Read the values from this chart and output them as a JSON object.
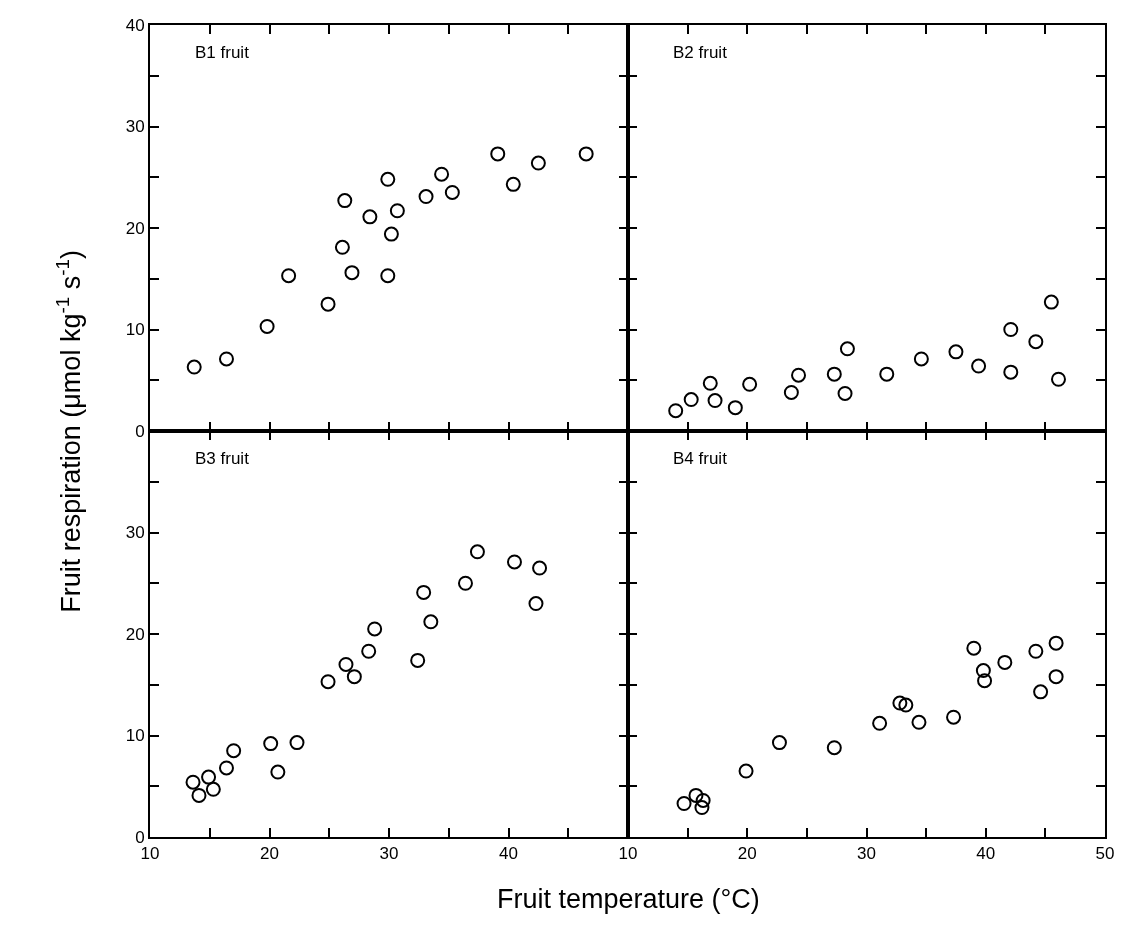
{
  "chart_data": [
    {
      "type": "scatter",
      "title": "B1 fruit",
      "ylabel": "Fruit respiration (μmol kg$^{-1}$ s$^{-1}$)",
      "marker": "circle",
      "grid": false,
      "tick_labels": "y",
      "xlim": [
        10,
        50
      ],
      "xticks": [
        10,
        {
          "value": 15,
          "label": null
        },
        20,
        {
          "value": 25,
          "label": null
        },
        30,
        {
          "value": 35,
          "label": null
        },
        40,
        {
          "value": 45,
          "label": null
        },
        50
      ],
      "ylim": [
        0,
        40
      ],
      "yticks": [
        0,
        {
          "value": 5,
          "label": null
        },
        10,
        {
          "value": 15,
          "label": null
        },
        20,
        {
          "value": 25,
          "label": null
        },
        30,
        {
          "value": 35,
          "label": null
        },
        40
      ],
      "x": [
        13.7,
        16.4,
        19.8,
        21.6,
        24.9,
        26.1,
        26.3,
        26.9,
        28.4,
        29.9,
        29.9,
        30.2,
        30.7,
        33.1,
        34.4,
        35.3,
        39.1,
        40.4,
        42.5,
        46.5
      ],
      "series": [
        {
          "color": "#000000",
          "values": [
            6.3,
            7.1,
            10.3,
            15.3,
            12.5,
            18.1,
            22.7,
            15.6,
            21.1,
            15.3,
            24.8,
            19.4,
            21.7,
            23.1,
            25.3,
            23.5,
            27.3,
            24.3,
            26.4,
            27.3
          ]
        }
      ]
    },
    {
      "type": "scatter",
      "title": "B2 fruit",
      "marker": "circle",
      "grid": false,
      "tick_labels": false,
      "xlim": [
        10,
        50
      ],
      "xticks": [
        10,
        {
          "value": 15,
          "label": null
        },
        20,
        {
          "value": 25,
          "label": null
        },
        30,
        {
          "value": 35,
          "label": null
        },
        40,
        {
          "value": 45,
          "label": null
        },
        50
      ],
      "ylim": [
        0,
        40
      ],
      "yticks": [
        0,
        {
          "value": 5,
          "label": null
        },
        10,
        {
          "value": 15,
          "label": null
        },
        20,
        {
          "value": 25,
          "label": null
        },
        30,
        {
          "value": 35,
          "label": null
        },
        40
      ],
      "x": [
        14.0,
        15.3,
        16.9,
        17.3,
        19.0,
        20.2,
        23.7,
        24.3,
        27.3,
        28.2,
        28.4,
        31.7,
        34.6,
        37.5,
        39.4,
        42.1,
        42.1,
        44.2,
        45.5,
        46.1
      ],
      "series": [
        {
          "color": "#000000",
          "values": [
            2.0,
            3.1,
            4.7,
            3.0,
            2.3,
            4.6,
            3.8,
            5.5,
            5.6,
            3.7,
            8.1,
            5.6,
            7.1,
            7.8,
            6.4,
            10.0,
            5.8,
            8.8,
            12.7,
            5.1
          ]
        }
      ]
    },
    {
      "type": "scatter",
      "title": "B3 fruit",
      "xlabel": "Fruit temperature (°C)",
      "marker": "circle",
      "grid": false,
      "xlim": [
        10,
        50
      ],
      "xticks": [
        10,
        {
          "value": 15,
          "label": null
        },
        20,
        {
          "value": 25,
          "label": null
        },
        30,
        {
          "value": 35,
          "label": null
        },
        40,
        {
          "value": 45,
          "label": null
        },
        {
          "value": 50,
          "label": null
        }
      ],
      "ylim": [
        0,
        40
      ],
      "yticks": [
        0,
        {
          "value": 5,
          "label": null
        },
        10,
        {
          "value": 15,
          "label": null
        },
        20,
        {
          "value": 25,
          "label": null
        },
        30,
        {
          "value": 35,
          "label": null
        },
        {
          "value": 40,
          "label": null
        }
      ],
      "x": [
        13.6,
        14.1,
        14.9,
        15.3,
        16.4,
        17.0,
        20.1,
        20.7,
        22.3,
        24.9,
        26.4,
        27.1,
        28.3,
        28.8,
        32.4,
        32.9,
        33.5,
        36.4,
        37.4,
        40.5,
        42.3,
        42.6
      ],
      "series": [
        {
          "color": "#000000",
          "values": [
            5.4,
            4.1,
            5.9,
            4.7,
            6.8,
            8.5,
            9.2,
            6.4,
            9.3,
            15.3,
            17.0,
            15.8,
            18.3,
            20.5,
            17.4,
            24.1,
            21.2,
            25.0,
            28.1,
            27.1,
            23.0,
            26.5
          ]
        }
      ]
    },
    {
      "type": "scatter",
      "title": "B4 fruit",
      "marker": "circle",
      "grid": false,
      "tick_labels": "x",
      "xlim": [
        10,
        50
      ],
      "xticks": [
        10,
        {
          "value": 15,
          "label": null
        },
        20,
        {
          "value": 25,
          "label": null
        },
        30,
        {
          "value": 35,
          "label": null
        },
        40,
        {
          "value": 45,
          "label": null
        },
        50
      ],
      "ylim": [
        0,
        40
      ],
      "yticks": [
        0,
        {
          "value": 5,
          "label": null
        },
        10,
        {
          "value": 15,
          "label": null
        },
        20,
        {
          "value": 25,
          "label": null
        },
        30,
        {
          "value": 35,
          "label": null
        },
        40
      ],
      "x": [
        14.7,
        15.7,
        16.3,
        16.2,
        19.9,
        22.7,
        27.3,
        31.1,
        32.8,
        33.3,
        34.4,
        37.3,
        39.0,
        39.8,
        39.9,
        41.6,
        44.2,
        44.6,
        45.9,
        45.9
      ],
      "series": [
        {
          "color": "#000000",
          "values": [
            3.3,
            4.1,
            3.6,
            2.9,
            6.5,
            9.3,
            8.8,
            11.2,
            13.2,
            13.0,
            11.3,
            11.8,
            18.6,
            16.4,
            15.4,
            17.2,
            18.3,
            14.3,
            19.1,
            15.8
          ]
        }
      ]
    }
  ]
}
